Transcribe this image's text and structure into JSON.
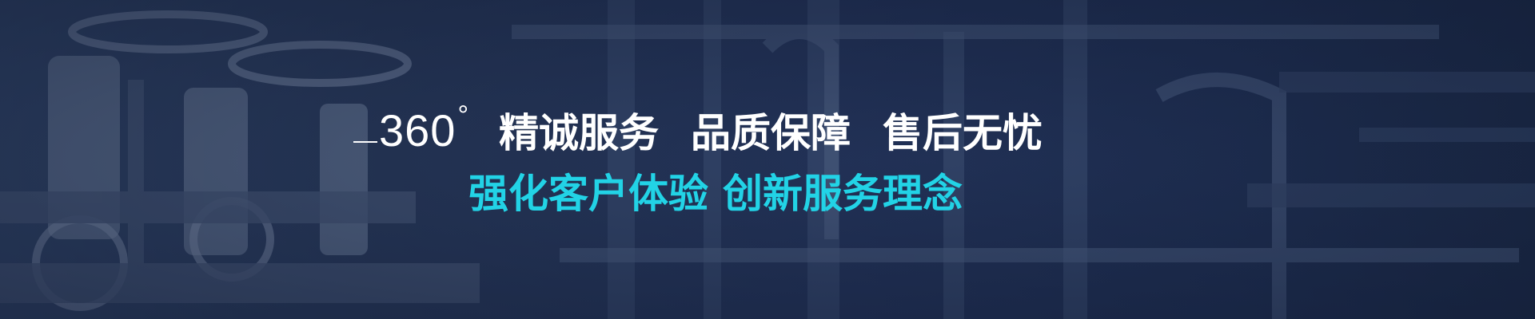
{
  "banner": {
    "number": "360",
    "degree": "°",
    "slogans": [
      "精诚服务",
      "品质保障",
      "售后无忧"
    ],
    "subslogans": [
      "强化客户体验",
      "创新服务理念"
    ]
  },
  "colors": {
    "background": "#24345a",
    "headline": "#ffffff",
    "accent": "#22d3e6"
  }
}
